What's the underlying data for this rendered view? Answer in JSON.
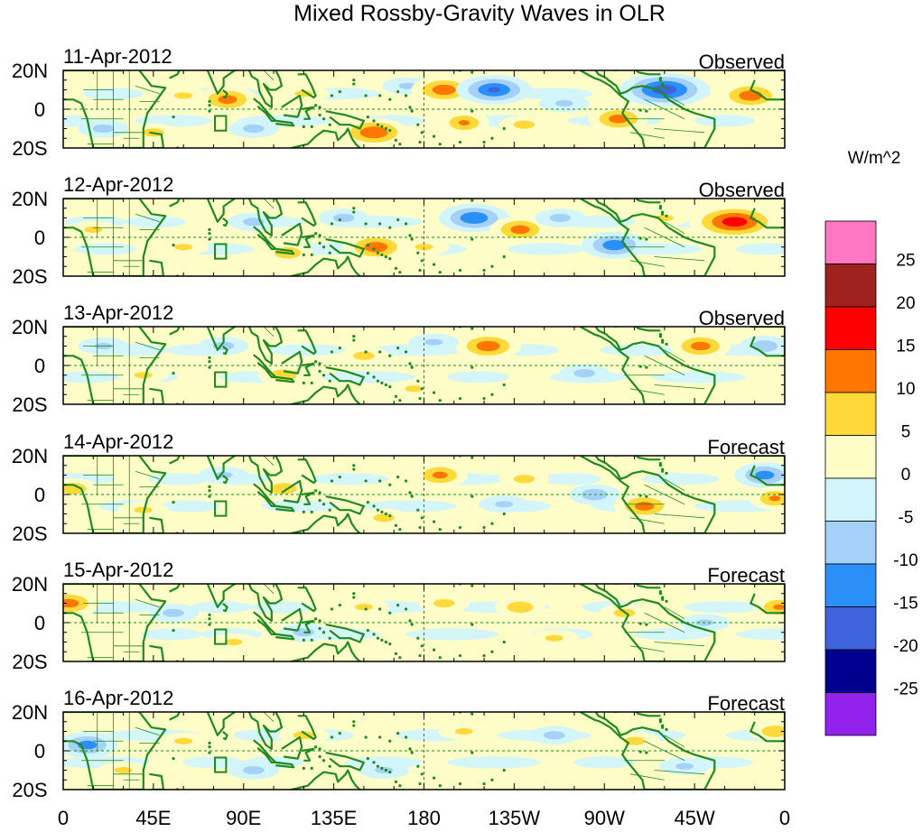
{
  "title": "Mixed Rossby-Gravity Waves in OLR",
  "colorbar": {
    "units": "W/m^2",
    "labels": [
      "25",
      "20",
      "15",
      "10",
      "5",
      "0",
      "-5",
      "-10",
      "-15",
      "-20",
      "-25"
    ],
    "colors": [
      "#ff77c2",
      "#a0221e",
      "#ff0000",
      "#ff7700",
      "#ffd93a",
      "#fffdc7",
      "#d2f5fb",
      "#a5d0f8",
      "#2a8ff7",
      "#3e63dd",
      "#00008f",
      "#9422ee"
    ]
  },
  "lat_labels": [
    "20N",
    "0",
    "20S"
  ],
  "lon_labels": [
    "0",
    "45E",
    "90E",
    "135E",
    "180",
    "135W",
    "90W",
    "45W",
    "0"
  ],
  "panels": [
    {
      "date": "11-Apr-2012",
      "kind": "Observed",
      "anomalies": [
        {
          "lon": 82,
          "lat": 5,
          "value": 12
        },
        {
          "lon": 60,
          "lat": 7,
          "value": 5
        },
        {
          "lon": 155,
          "lat": -12,
          "value": 14
        },
        {
          "lon": 172,
          "lat": 12,
          "value": -5
        },
        {
          "lon": 190,
          "lat": 10,
          "value": 13
        },
        {
          "lon": 215,
          "lat": 10,
          "value": -15
        },
        {
          "lon": 200,
          "lat": -7,
          "value": 10
        },
        {
          "lon": 230,
          "lat": -8,
          "value": 6
        },
        {
          "lon": 300,
          "lat": 10,
          "value": -18
        },
        {
          "lon": 343,
          "lat": 7,
          "value": 13
        },
        {
          "lon": 277,
          "lat": -5,
          "value": 12
        },
        {
          "lon": 45,
          "lat": -12,
          "value": 6
        },
        {
          "lon": 20,
          "lat": -10,
          "value": -6
        },
        {
          "lon": 95,
          "lat": -10,
          "value": -6
        },
        {
          "lon": 250,
          "lat": 3,
          "value": -5
        },
        {
          "lon": 120,
          "lat": 8,
          "value": 5
        }
      ]
    },
    {
      "date": "12-Apr-2012",
      "kind": "Observed",
      "anomalies": [
        {
          "lon": 140,
          "lat": 10,
          "value": -6
        },
        {
          "lon": 156,
          "lat": -5,
          "value": 13
        },
        {
          "lon": 205,
          "lat": 10,
          "value": -14
        },
        {
          "lon": 228,
          "lat": 4,
          "value": 12
        },
        {
          "lon": 335,
          "lat": 8,
          "value": 18
        },
        {
          "lon": 275,
          "lat": -4,
          "value": -13
        },
        {
          "lon": 15,
          "lat": 4,
          "value": 5
        },
        {
          "lon": 112,
          "lat": -8,
          "value": 8
        },
        {
          "lon": 95,
          "lat": 8,
          "value": -6
        },
        {
          "lon": 248,
          "lat": 10,
          "value": -6
        },
        {
          "lon": 60,
          "lat": -5,
          "value": 5
        },
        {
          "lon": 180,
          "lat": -5,
          "value": 5
        },
        {
          "lon": 300,
          "lat": 10,
          "value": 5
        }
      ]
    },
    {
      "date": "13-Apr-2012",
      "kind": "Observed",
      "anomalies": [
        {
          "lon": 212,
          "lat": 10,
          "value": 13
        },
        {
          "lon": 318,
          "lat": 10,
          "value": 12
        },
        {
          "lon": 110,
          "lat": -5,
          "value": 8
        },
        {
          "lon": 80,
          "lat": 10,
          "value": -6
        },
        {
          "lon": 350,
          "lat": 10,
          "value": -8
        },
        {
          "lon": 150,
          "lat": 5,
          "value": 6
        },
        {
          "lon": 260,
          "lat": -4,
          "value": -6
        },
        {
          "lon": 40,
          "lat": -5,
          "value": 5
        },
        {
          "lon": 185,
          "lat": 12,
          "value": -5
        },
        {
          "lon": 175,
          "lat": -12,
          "value": 5
        },
        {
          "lon": 20,
          "lat": 10,
          "value": -5
        }
      ]
    },
    {
      "date": "14-Apr-2012",
      "kind": "Forecast",
      "anomalies": [
        {
          "lon": 188,
          "lat": 10,
          "value": 11
        },
        {
          "lon": 290,
          "lat": -6,
          "value": 12
        },
        {
          "lon": 350,
          "lat": 10,
          "value": -12
        },
        {
          "lon": 265,
          "lat": 0,
          "value": -8
        },
        {
          "lon": 5,
          "lat": 3,
          "value": 8
        },
        {
          "lon": 110,
          "lat": 3,
          "value": 8
        },
        {
          "lon": 160,
          "lat": -12,
          "value": 6
        },
        {
          "lon": 80,
          "lat": 10,
          "value": -5
        },
        {
          "lon": 230,
          "lat": 8,
          "value": 6
        },
        {
          "lon": 355,
          "lat": -2,
          "value": 10
        },
        {
          "lon": 40,
          "lat": -8,
          "value": 5
        },
        {
          "lon": 220,
          "lat": -5,
          "value": -5
        }
      ]
    },
    {
      "date": "15-Apr-2012",
      "kind": "Forecast",
      "anomalies": [
        {
          "lon": 3,
          "lat": 10,
          "value": 12
        },
        {
          "lon": 228,
          "lat": 8,
          "value": 8
        },
        {
          "lon": 357,
          "lat": 8,
          "value": 10
        },
        {
          "lon": 190,
          "lat": 10,
          "value": 6
        },
        {
          "lon": 55,
          "lat": 5,
          "value": -6
        },
        {
          "lon": 120,
          "lat": -5,
          "value": -6
        },
        {
          "lon": 280,
          "lat": 5,
          "value": 6
        },
        {
          "lon": 245,
          "lat": -8,
          "value": 5
        },
        {
          "lon": 150,
          "lat": 8,
          "value": 5
        },
        {
          "lon": 85,
          "lat": -10,
          "value": 5
        },
        {
          "lon": 320,
          "lat": 0,
          "value": -5
        }
      ]
    },
    {
      "date": "16-Apr-2012",
      "kind": "Forecast",
      "anomalies": [
        {
          "lon": 12,
          "lat": 3,
          "value": -12
        },
        {
          "lon": 95,
          "lat": -10,
          "value": -6
        },
        {
          "lon": 355,
          "lat": 10,
          "value": 8
        },
        {
          "lon": 120,
          "lat": 8,
          "value": 6
        },
        {
          "lon": 245,
          "lat": 8,
          "value": -6
        },
        {
          "lon": 285,
          "lat": 5,
          "value": 6
        },
        {
          "lon": 200,
          "lat": 10,
          "value": 5
        },
        {
          "lon": 60,
          "lat": 5,
          "value": 5
        },
        {
          "lon": 160,
          "lat": -10,
          "value": -5
        },
        {
          "lon": 310,
          "lat": -8,
          "value": -5
        },
        {
          "lon": 30,
          "lat": -10,
          "value": 5
        }
      ]
    }
  ]
}
